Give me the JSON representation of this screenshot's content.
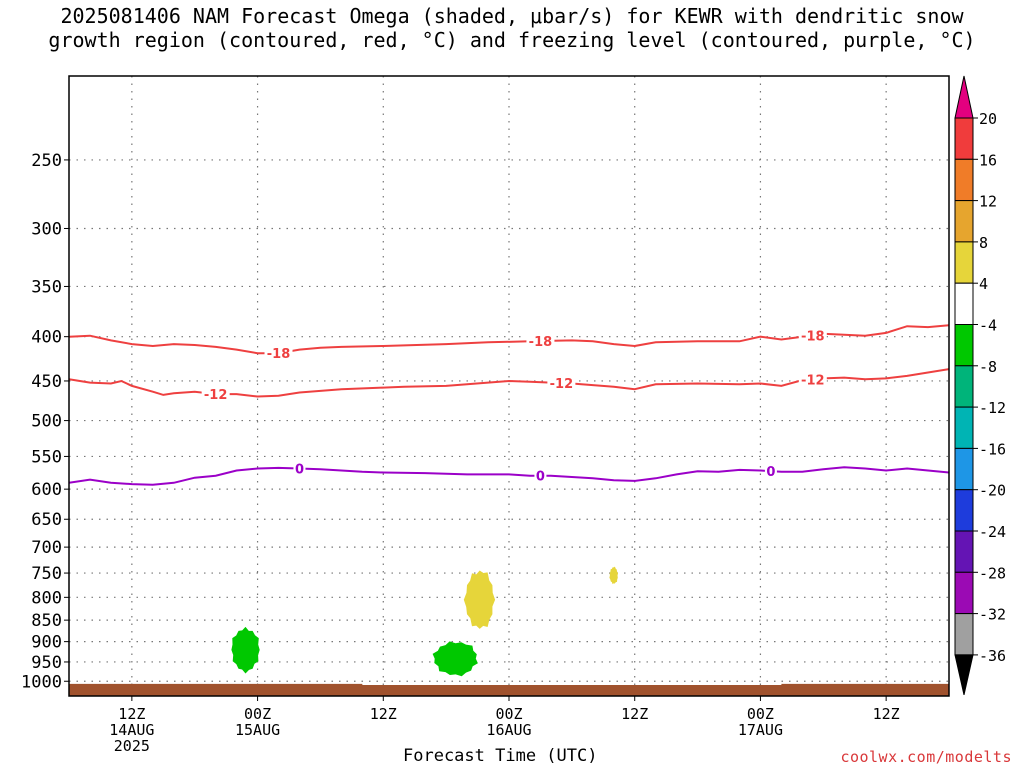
{
  "title": "2025081406 NAM Forecast Omega (shaded, μbar/s) for KEWR with dendritic snow\ngrowth region (contoured, red, °C) and freezing level (contoured, purple, °C)",
  "footer": "coolwx.com/modelts",
  "chart_data": {
    "type": "heatmap",
    "title": "2025081406 NAM Forecast Omega (shaded, μbar/s) for KEWR with dendritic snow growth region (contoured, red, °C) and freezing level (contoured, purple, °C)",
    "xlabel": "Forecast Time (UTC)",
    "ylabel": "",
    "x_axis": {
      "unit": "hours since 2025-08-14 06Z",
      "range": [
        0,
        84
      ],
      "ticks": [
        {
          "x": 6,
          "lines": [
            "12Z",
            "14AUG",
            "2025"
          ]
        },
        {
          "x": 18,
          "lines": [
            "00Z",
            "15AUG"
          ]
        },
        {
          "x": 30,
          "lines": [
            "12Z"
          ]
        },
        {
          "x": 42,
          "lines": [
            "00Z",
            "16AUG"
          ]
        },
        {
          "x": 54,
          "lines": [
            "12Z"
          ]
        },
        {
          "x": 66,
          "lines": [
            "00Z",
            "17AUG"
          ]
        },
        {
          "x": 78,
          "lines": [
            "12Z"
          ]
        }
      ]
    },
    "y_axis": {
      "unit": "hPa",
      "scale": "log-pressure",
      "range": [
        1040,
        200
      ],
      "ticks": [
        250,
        300,
        350,
        400,
        450,
        500,
        550,
        600,
        650,
        700,
        750,
        800,
        850,
        900,
        950,
        1000
      ]
    },
    "grid": true,
    "colorbar": {
      "position": "right",
      "labels": [
        "20",
        "16",
        "12",
        "8",
        "4",
        "-4",
        "-8",
        "-12",
        "-16",
        "-20",
        "-24",
        "-28",
        "-32",
        "-36"
      ],
      "colors": [
        "#e3007f",
        "#f03c3c",
        "#f07c28",
        "#e6a52e",
        "#e6d53a",
        "#ffffff",
        "#00c800",
        "#00b47a",
        "#00b4b4",
        "#1e96e6",
        "#1e3cdc",
        "#6414b4",
        "#9b0ab4",
        "#a0a0a0",
        "#000000"
      ]
    },
    "contours": [
      {
        "label": "-18",
        "color": "#ee4040",
        "points": [
          [
            0,
            400
          ],
          [
            2,
            399
          ],
          [
            4,
            404
          ],
          [
            6,
            408
          ],
          [
            8,
            410
          ],
          [
            10,
            408
          ],
          [
            12,
            409
          ],
          [
            14,
            411
          ],
          [
            16,
            414
          ],
          [
            18,
            418
          ],
          [
            20,
            418
          ],
          [
            22,
            414
          ],
          [
            24,
            412
          ],
          [
            26,
            411
          ],
          [
            30,
            410
          ],
          [
            36,
            408
          ],
          [
            40,
            406
          ],
          [
            44,
            405
          ],
          [
            48,
            404
          ],
          [
            50,
            405
          ],
          [
            52,
            408
          ],
          [
            54,
            410
          ],
          [
            56,
            406
          ],
          [
            60,
            405
          ],
          [
            64,
            405
          ],
          [
            66,
            400
          ],
          [
            68,
            403
          ],
          [
            70,
            400
          ],
          [
            72,
            397
          ],
          [
            74,
            398
          ],
          [
            76,
            399
          ],
          [
            78,
            396
          ],
          [
            80,
            389
          ],
          [
            82,
            390
          ],
          [
            84,
            388
          ]
        ],
        "labels_at": [
          20,
          45,
          71
        ]
      },
      {
        "label": "-12",
        "color": "#ee4040",
        "points": [
          [
            0,
            448
          ],
          [
            2,
            452
          ],
          [
            4,
            453
          ],
          [
            5,
            450
          ],
          [
            6,
            456
          ],
          [
            8,
            463
          ],
          [
            9,
            467
          ],
          [
            10,
            465
          ],
          [
            12,
            463
          ],
          [
            14,
            466
          ],
          [
            16,
            466
          ],
          [
            18,
            469
          ],
          [
            20,
            468
          ],
          [
            22,
            464
          ],
          [
            24,
            462
          ],
          [
            26,
            460
          ],
          [
            30,
            458
          ],
          [
            32,
            457
          ],
          [
            36,
            456
          ],
          [
            40,
            452
          ],
          [
            42,
            450
          ],
          [
            44,
            451
          ],
          [
            48,
            453
          ],
          [
            50,
            455
          ],
          [
            52,
            457
          ],
          [
            54,
            460
          ],
          [
            56,
            454
          ],
          [
            60,
            453
          ],
          [
            64,
            454
          ],
          [
            66,
            453
          ],
          [
            68,
            456
          ],
          [
            70,
            449
          ],
          [
            72,
            447
          ],
          [
            74,
            446
          ],
          [
            76,
            448
          ],
          [
            78,
            447
          ],
          [
            80,
            444
          ],
          [
            82,
            440
          ],
          [
            84,
            436
          ]
        ],
        "labels_at": [
          14,
          47,
          71
        ]
      },
      {
        "label": "0",
        "color": "#9b00c8",
        "points": [
          [
            0,
            590
          ],
          [
            2,
            585
          ],
          [
            4,
            590
          ],
          [
            6,
            592
          ],
          [
            8,
            593
          ],
          [
            10,
            590
          ],
          [
            12,
            582
          ],
          [
            14,
            579
          ],
          [
            16,
            571
          ],
          [
            18,
            568
          ],
          [
            20,
            567
          ],
          [
            22,
            568
          ],
          [
            24,
            569
          ],
          [
            26,
            571
          ],
          [
            28,
            573
          ],
          [
            30,
            574
          ],
          [
            34,
            575
          ],
          [
            38,
            577
          ],
          [
            42,
            577
          ],
          [
            44,
            579
          ],
          [
            46,
            579
          ],
          [
            50,
            583
          ],
          [
            52,
            586
          ],
          [
            54,
            587
          ],
          [
            56,
            583
          ],
          [
            58,
            577
          ],
          [
            60,
            572
          ],
          [
            62,
            573
          ],
          [
            64,
            570
          ],
          [
            66,
            571
          ],
          [
            68,
            573
          ],
          [
            70,
            573
          ],
          [
            72,
            569
          ],
          [
            74,
            566
          ],
          [
            76,
            568
          ],
          [
            78,
            571
          ],
          [
            80,
            568
          ],
          [
            82,
            571
          ],
          [
            84,
            574
          ]
        ],
        "labels_at": [
          22,
          45,
          67
        ]
      }
    ],
    "shaded_regions": [
      {
        "value": "-4 to -8",
        "color": "#00c800",
        "x_range": [
          15.5,
          18.2
        ],
        "y_range": [
          868,
          975
        ]
      },
      {
        "value": "-4 to -8",
        "color": "#00c800",
        "x_range": [
          34.8,
          39.0
        ],
        "y_range": [
          900,
          985
        ]
      },
      {
        "value": "4 to 8",
        "color": "#e6d53a",
        "x_range": [
          37.8,
          40.6
        ],
        "y_range": [
          745,
          870
        ]
      },
      {
        "value": "4 to 8",
        "color": "#e6d53a",
        "x_range": [
          51.6,
          52.4
        ],
        "y_range": [
          738,
          772
        ]
      }
    ],
    "terrain": {
      "color": "#a0522d",
      "pressure_top": [
        [
          0,
          1007
        ],
        [
          28,
          1007
        ],
        [
          28,
          1010
        ],
        [
          68,
          1010
        ],
        [
          68,
          1007
        ],
        [
          84,
          1007
        ]
      ]
    }
  }
}
